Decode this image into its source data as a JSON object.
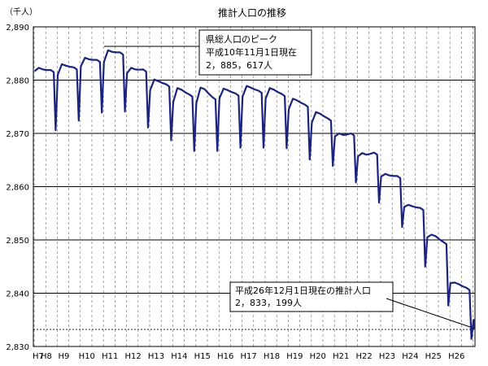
{
  "chart_data": {
    "type": "line",
    "title": "推計人口の推移",
    "ylabel": "（千人）",
    "ylim": [
      2830,
      2890
    ],
    "yticks": [
      "2,830",
      "2,840",
      "2,850",
      "2,860",
      "2,870",
      "2,880",
      "2,890"
    ],
    "categories": [
      "H8",
      "H9",
      "H10",
      "H11",
      "H12",
      "H13",
      "H14",
      "H15",
      "H16",
      "H17",
      "H18",
      "H19",
      "H20",
      "H21",
      "H22",
      "H23",
      "H24",
      "H25",
      "H26"
    ],
    "x_prefix_label": "H7",
    "series": [
      {
        "color": "#1a237e",
        "annual_start": [
          2881.7,
          2881.0,
          2882.6,
          2883.4,
          2881.3,
          2878.1,
          2875.9,
          2875.7,
          2876.6,
          2876.9,
          2876.5,
          2874.5,
          2872.0,
          2869.4,
          2865.7,
          2861.9,
          2856.2,
          2850.5,
          2841.9,
          2835.0
        ],
        "annual_peak": [
          2882.3,
          2883.0,
          2884.2,
          2885.6,
          2882.3,
          2880.1,
          2878.5,
          2878.6,
          2878.4,
          2878.9,
          2878.5,
          2876.5,
          2874.0,
          2870.0,
          2866.3,
          2862.4,
          2856.6,
          2851.0,
          2842.0,
          2835.0
        ],
        "annual_end": [
          2881.5,
          2882.0,
          2883.4,
          2884.8,
          2881.6,
          2878.8,
          2876.9,
          2876.4,
          2877.1,
          2877.6,
          2877.0,
          2875.0,
          2872.4,
          2869.6,
          2866.0,
          2861.6,
          2855.6,
          2849.2,
          2840.6,
          2834.3
        ],
        "annual_dip": [
          2870.6,
          2872.4,
          2873.9,
          2874.1,
          2871.1,
          2868.7,
          2866.7,
          2866.7,
          2867.3,
          2867.3,
          2867.2,
          2865.1,
          2863.9,
          2860.8,
          2857.0,
          2852.4,
          2845.0,
          2837.7,
          2831.4,
          null
        ]
      }
    ],
    "annotations": [
      {
        "lines": [
          "県総人口のピーク",
          "平成10年11月1日現在",
          "2，885，617人"
        ]
      },
      {
        "lines": [
          "平成26年12月1日現在の推計人口",
          "2，833，199人"
        ]
      }
    ],
    "reference_value": 2833.2,
    "grid": "y-major-solid, x-dashed"
  }
}
